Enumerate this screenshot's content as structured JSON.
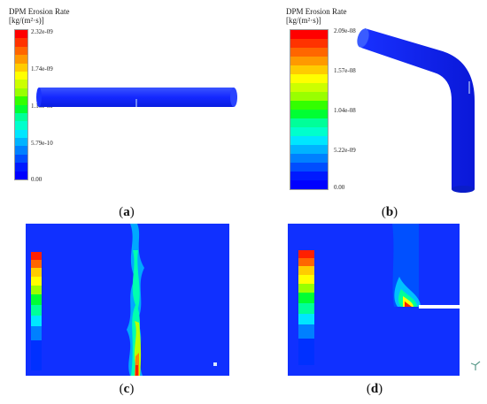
{
  "panels": [
    {
      "id": "a",
      "caption_letter": "a",
      "legend": {
        "title": "DPM Erosion Rate",
        "unit": "[kg/(m²·s)]",
        "ticks": [
          "2.32e-09",
          "1.74e-09",
          "1.16e-09",
          "5.79e-10",
          "0.00"
        ]
      }
    },
    {
      "id": "b",
      "caption_letter": "b",
      "legend": {
        "title": "DPM Erosion Rate",
        "unit": "[kg/(m²·s)]",
        "ticks": [
          "2.09e-08",
          "1.57e-08",
          "1.04e-08",
          "5.22e-09",
          "0.00"
        ]
      }
    },
    {
      "id": "c",
      "caption_letter": "c"
    },
    {
      "id": "d",
      "caption_letter": "d"
    }
  ],
  "colormap": [
    "#ff0000",
    "#ff3300",
    "#ff6600",
    "#ff9900",
    "#ffcc00",
    "#ffff00",
    "#ccff00",
    "#99ff00",
    "#33ff00",
    "#00ff33",
    "#00ff99",
    "#00ffcc",
    "#00e6ff",
    "#00b3ff",
    "#0080ff",
    "#004dff",
    "#001aff",
    "#0000ff"
  ],
  "colors": {
    "background_blue": "#1030ff",
    "highlight_red": "#ff2000"
  }
}
